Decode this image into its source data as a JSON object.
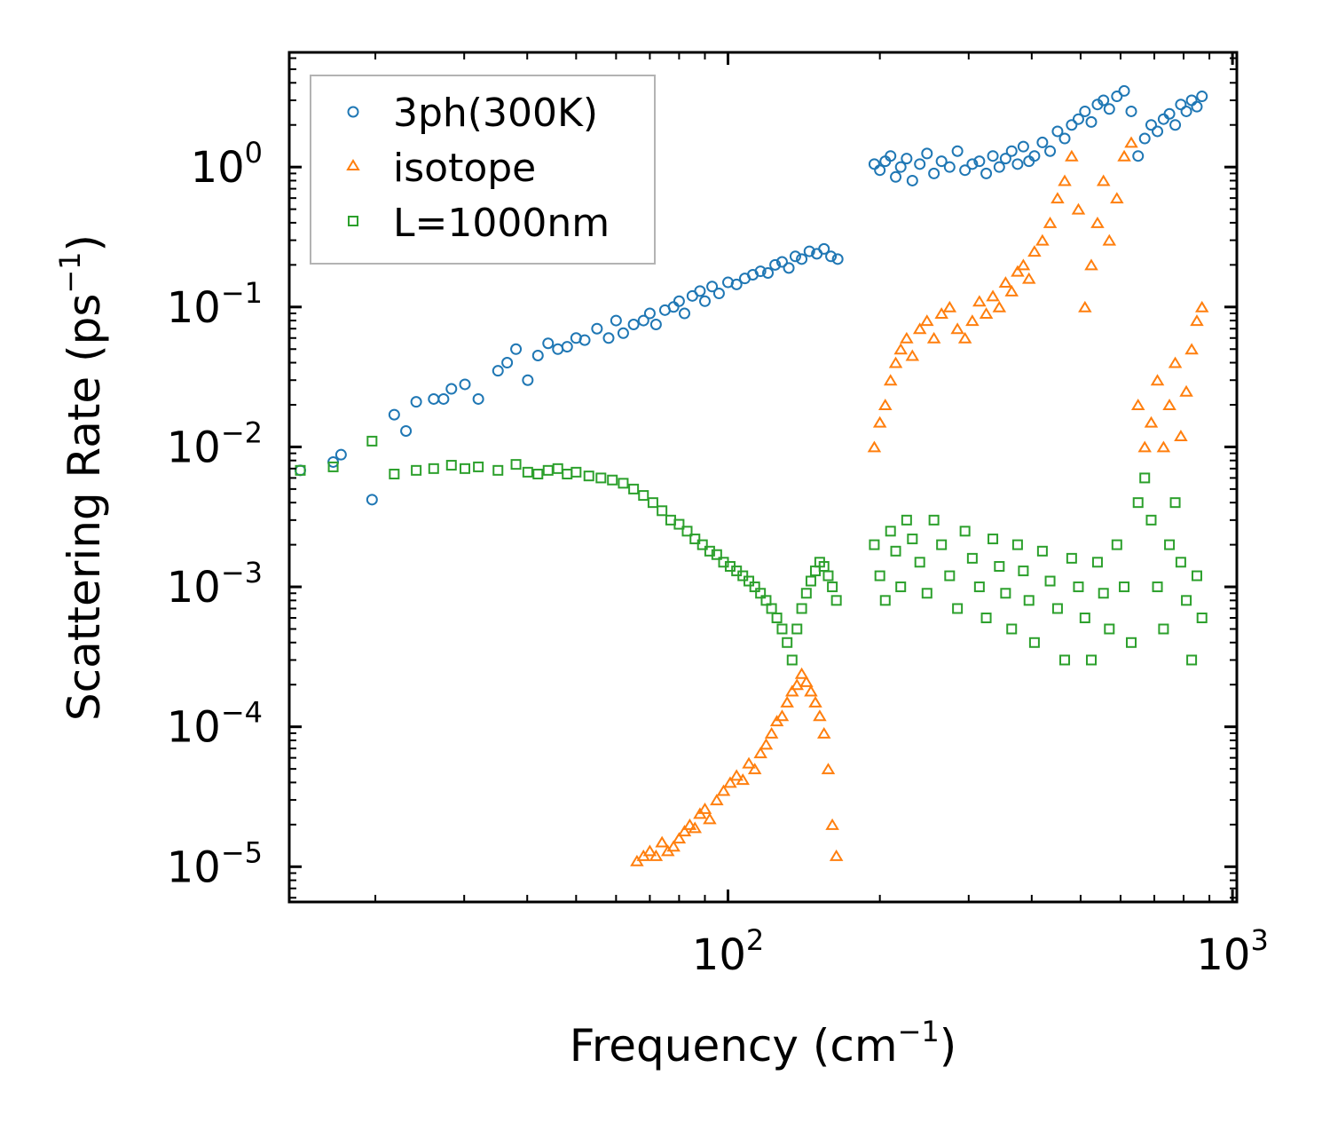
{
  "chart_data": {
    "type": "scatter",
    "xscale": "log",
    "yscale": "log",
    "xlim": [
      13.5,
      1020
    ],
    "ylim": [
      5.6e-06,
      6.6
    ],
    "xlabel": "Frequency (cm",
    "xlabel_sup": "−1",
    "xlabel_end": ")",
    "ylabel": "Scattering Rate (ps",
    "ylabel_sup": "−1",
    "ylabel_end": ")",
    "x_ticks": [
      {
        "value": 100,
        "base": "10",
        "exp": "2"
      },
      {
        "value": 1000,
        "base": "10",
        "exp": "3"
      }
    ],
    "y_ticks": [
      {
        "value": 1,
        "base": "10",
        "exp": "0"
      },
      {
        "value": 0.1,
        "base": "10",
        "exp": "−1"
      },
      {
        "value": 0.01,
        "base": "10",
        "exp": "−2"
      },
      {
        "value": 0.001,
        "base": "10",
        "exp": "−3"
      },
      {
        "value": 0.0001,
        "base": "10",
        "exp": "−4"
      },
      {
        "value": 1e-05,
        "base": "10",
        "exp": "−5"
      }
    ],
    "legend_position": "top-left",
    "series": [
      {
        "name": "3ph(300K)",
        "marker": "circle",
        "color": "#1f77b4",
        "x": [
          14.2,
          16.5,
          17.1,
          19.7,
          21.8,
          23.0,
          24.1,
          26.1,
          27.3,
          28.3,
          30.1,
          32.0,
          35.0,
          36.5,
          38.0,
          40.1,
          42.0,
          44.0,
          46.0,
          48.0,
          50.0,
          52.0,
          55.0,
          58.0,
          60.0,
          62.0,
          65.0,
          68.0,
          70.0,
          72.0,
          75.0,
          78.0,
          80.0,
          82.0,
          85.0,
          88.0,
          90.0,
          93.0,
          96.0,
          100.0,
          104.0,
          108.0,
          112.0,
          116.0,
          120.0,
          124.0,
          128.0,
          132.0,
          136.0,
          140.0,
          145.0,
          150.0,
          155.0,
          160.0,
          165.0,
          195.0,
          200.0,
          205.0,
          210.0,
          215.0,
          220.0,
          226.0,
          232.0,
          240.0,
          248.0,
          256.0,
          265.0,
          275.0,
          285.0,
          295.0,
          305.0,
          315.0,
          325.0,
          335.0,
          345.0,
          355.0,
          365.0,
          375.0,
          385.0,
          395.0,
          405.0,
          420.0,
          435.0,
          450.0,
          465.0,
          480.0,
          495.0,
          510.0,
          525.0,
          540.0,
          555.0,
          570.0,
          590.0,
          610.0,
          630.0,
          650.0,
          670.0,
          690.0,
          710.0,
          730.0,
          750.0,
          770.0,
          790.0,
          810.0,
          830.0,
          850.0,
          870.0
        ],
        "y": [
          0.0068,
          0.0078,
          0.0088,
          0.0042,
          0.017,
          0.013,
          0.021,
          0.022,
          0.022,
          0.026,
          0.028,
          0.022,
          0.035,
          0.04,
          0.05,
          0.03,
          0.045,
          0.055,
          0.05,
          0.052,
          0.06,
          0.058,
          0.07,
          0.06,
          0.08,
          0.065,
          0.075,
          0.08,
          0.09,
          0.075,
          0.095,
          0.1,
          0.11,
          0.09,
          0.12,
          0.13,
          0.11,
          0.14,
          0.125,
          0.15,
          0.145,
          0.16,
          0.17,
          0.18,
          0.175,
          0.2,
          0.21,
          0.19,
          0.23,
          0.22,
          0.25,
          0.24,
          0.26,
          0.23,
          0.22,
          1.05,
          0.95,
          1.1,
          1.2,
          0.85,
          1.0,
          1.15,
          0.8,
          1.05,
          1.25,
          0.9,
          1.1,
          1.0,
          1.3,
          0.95,
          1.05,
          1.1,
          0.9,
          1.2,
          1.0,
          1.15,
          1.3,
          1.05,
          1.4,
          1.1,
          1.2,
          1.5,
          1.3,
          1.8,
          1.6,
          2.0,
          2.2,
          2.5,
          2.1,
          2.8,
          3.0,
          2.6,
          3.2,
          3.5,
          2.5,
          1.2,
          1.6,
          2.0,
          1.8,
          2.2,
          2.4,
          2.0,
          2.8,
          2.5,
          3.0,
          2.7,
          3.2
        ]
      },
      {
        "name": "isotope",
        "marker": "triangle",
        "color": "#ff7f0e",
        "x": [
          66.0,
          68.0,
          70.0,
          72.0,
          74.0,
          76.0,
          78.0,
          80.0,
          82.0,
          84.0,
          86.0,
          88.0,
          90.0,
          92.0,
          95.0,
          98.0,
          101.0,
          104.0,
          107.0,
          110.0,
          113.0,
          116.0,
          119.0,
          122.0,
          125.0,
          128.0,
          131.0,
          134.0,
          137.0,
          140.0,
          143.0,
          146.0,
          149.0,
          152.0,
          155.0,
          158.0,
          161.0,
          164.0,
          195.0,
          200.0,
          205.0,
          210.0,
          215.0,
          220.0,
          226.0,
          232.0,
          240.0,
          248.0,
          256.0,
          265.0,
          275.0,
          285.0,
          295.0,
          305.0,
          315.0,
          325.0,
          335.0,
          345.0,
          355.0,
          365.0,
          375.0,
          385.0,
          395.0,
          405.0,
          420.0,
          435.0,
          450.0,
          465.0,
          480.0,
          495.0,
          510.0,
          525.0,
          540.0,
          555.0,
          570.0,
          590.0,
          610.0,
          630.0,
          650.0,
          670.0,
          690.0,
          710.0,
          730.0,
          750.0,
          770.0,
          790.0,
          810.0,
          830.0,
          850.0,
          870.0
        ],
        "y": [
          1.1e-05,
          1.2e-05,
          1.3e-05,
          1.2e-05,
          1.5e-05,
          1.3e-05,
          1.4e-05,
          1.6e-05,
          1.8e-05,
          2e-05,
          1.9e-05,
          2.4e-05,
          2.6e-05,
          2.2e-05,
          3e-05,
          3.5e-05,
          4e-05,
          4.5e-05,
          4.2e-05,
          5.5e-05,
          5e-05,
          6.5e-05,
          7.5e-05,
          9e-05,
          0.00011,
          0.00012,
          0.00015,
          0.00018,
          0.0002,
          0.00024,
          0.00021,
          0.00018,
          0.00015,
          0.00012,
          9e-05,
          5e-05,
          2e-05,
          1.2e-05,
          0.01,
          0.015,
          0.02,
          0.03,
          0.04,
          0.05,
          0.06,
          0.045,
          0.07,
          0.08,
          0.06,
          0.09,
          0.1,
          0.07,
          0.06,
          0.08,
          0.11,
          0.09,
          0.12,
          0.1,
          0.15,
          0.13,
          0.18,
          0.2,
          0.16,
          0.25,
          0.3,
          0.4,
          0.6,
          0.8,
          1.2,
          0.5,
          0.1,
          0.2,
          0.4,
          0.8,
          0.3,
          0.6,
          1.2,
          1.5,
          0.02,
          0.01,
          0.015,
          0.03,
          0.01,
          0.02,
          0.04,
          0.012,
          0.025,
          0.05,
          0.08,
          0.1
        ]
      },
      {
        "name": "L=1000nm",
        "marker": "square",
        "color": "#2ca02c",
        "x": [
          14.2,
          16.5,
          19.7,
          21.8,
          24.1,
          26.1,
          28.3,
          30.1,
          32.0,
          35.0,
          38.0,
          40.1,
          42.0,
          44.0,
          46.0,
          48.0,
          50.0,
          53.0,
          56.0,
          59.0,
          62.0,
          65.0,
          68.0,
          71.0,
          74.0,
          77.0,
          80.0,
          83.0,
          86.0,
          89.0,
          92.0,
          95.0,
          98.0,
          101.0,
          104.0,
          107.0,
          110.0,
          113.0,
          116.0,
          119.0,
          122.0,
          125.0,
          128.0,
          131.0,
          134.0,
          137.0,
          140.0,
          143.0,
          146.0,
          149.0,
          152.0,
          155.0,
          158.0,
          161.0,
          164.0,
          195.0,
          200.0,
          205.0,
          210.0,
          215.0,
          220.0,
          226.0,
          232.0,
          240.0,
          248.0,
          256.0,
          265.0,
          275.0,
          285.0,
          295.0,
          305.0,
          315.0,
          325.0,
          335.0,
          345.0,
          355.0,
          365.0,
          375.0,
          385.0,
          395.0,
          405.0,
          420.0,
          435.0,
          450.0,
          465.0,
          480.0,
          495.0,
          510.0,
          525.0,
          540.0,
          555.0,
          570.0,
          590.0,
          610.0,
          630.0,
          650.0,
          670.0,
          690.0,
          710.0,
          730.0,
          750.0,
          770.0,
          790.0,
          810.0,
          830.0,
          850.0,
          870.0
        ],
        "y": [
          0.0068,
          0.0072,
          0.011,
          0.0064,
          0.0068,
          0.007,
          0.0074,
          0.007,
          0.0072,
          0.0068,
          0.0075,
          0.0066,
          0.0064,
          0.0068,
          0.007,
          0.0064,
          0.0066,
          0.0062,
          0.006,
          0.0058,
          0.0055,
          0.005,
          0.0045,
          0.004,
          0.0035,
          0.003,
          0.0028,
          0.0025,
          0.0022,
          0.002,
          0.0018,
          0.0017,
          0.0015,
          0.0014,
          0.0013,
          0.0012,
          0.0011,
          0.001,
          0.0009,
          0.0008,
          0.0007,
          0.0006,
          0.0005,
          0.0004,
          0.0003,
          0.0005,
          0.0007,
          0.0009,
          0.0011,
          0.0013,
          0.0015,
          0.0014,
          0.0012,
          0.001,
          0.0008,
          0.002,
          0.0012,
          0.0008,
          0.0025,
          0.0018,
          0.001,
          0.003,
          0.0022,
          0.0015,
          0.0009,
          0.003,
          0.002,
          0.0012,
          0.0007,
          0.0025,
          0.0016,
          0.001,
          0.0006,
          0.0022,
          0.0014,
          0.0009,
          0.0005,
          0.002,
          0.0013,
          0.0008,
          0.0004,
          0.0018,
          0.0011,
          0.0007,
          0.0003,
          0.0016,
          0.001,
          0.0006,
          0.0003,
          0.0015,
          0.0009,
          0.0005,
          0.002,
          0.001,
          0.0004,
          0.004,
          0.006,
          0.003,
          0.001,
          0.0005,
          0.002,
          0.004,
          0.0015,
          0.0008,
          0.0003,
          0.0012,
          0.0006
        ]
      }
    ]
  }
}
